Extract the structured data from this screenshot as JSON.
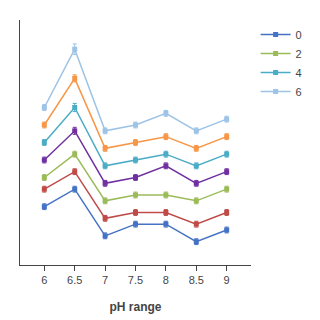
{
  "chart_data": {
    "type": "line",
    "x_label": "pH range",
    "x": [
      6,
      6.5,
      7,
      7.5,
      8,
      8.5,
      9
    ],
    "series": [
      {
        "name": "0",
        "color": "#4472C4",
        "values": [
          0.54,
          0.57,
          0.49,
          0.51,
          0.51,
          0.48,
          0.5
        ],
        "errors": [
          0.005,
          0.005,
          0.005,
          0.005,
          0.005,
          0.005,
          0.005
        ]
      },
      {
        "color": "#BE4B48",
        "values": [
          0.57,
          0.6,
          0.52,
          0.53,
          0.53,
          0.51,
          0.53
        ],
        "errors": [
          0.005,
          0.005,
          0.005,
          0.005,
          0.005,
          0.005,
          0.005
        ]
      },
      {
        "name": "2",
        "color": "#9BBB59",
        "values": [
          0.59,
          0.63,
          0.55,
          0.56,
          0.56,
          0.55,
          0.57
        ],
        "errors": [
          0.005,
          0.005,
          0.005,
          0.005,
          0.005,
          0.005,
          0.005
        ]
      },
      {
        "color": "#7030A0",
        "values": [
          0.62,
          0.67,
          0.58,
          0.59,
          0.61,
          0.58,
          0.6
        ],
        "errors": [
          0.005,
          0.006,
          0.005,
          0.005,
          0.005,
          0.005,
          0.005
        ]
      },
      {
        "name": "4",
        "color": "#4BACC6",
        "values": [
          0.65,
          0.71,
          0.61,
          0.62,
          0.63,
          0.61,
          0.63
        ],
        "errors": [
          0.005,
          0.007,
          0.005,
          0.005,
          0.005,
          0.005,
          0.005
        ]
      },
      {
        "color": "#F79646",
        "values": [
          0.68,
          0.76,
          0.64,
          0.65,
          0.66,
          0.64,
          0.66
        ],
        "errors": [
          0.005,
          0.006,
          0.005,
          0.005,
          0.005,
          0.005,
          0.005
        ]
      },
      {
        "name": "6",
        "color": "#9DC3E6",
        "values": [
          0.71,
          0.81,
          0.67,
          0.68,
          0.7,
          0.67,
          0.69
        ],
        "errors": [
          0.005,
          0.009,
          0.005,
          0.005,
          0.005,
          0.005,
          0.005
        ]
      }
    ],
    "xlim": [
      5.6,
      9.4
    ],
    "xticks": [
      6,
      6.5,
      7,
      7.5,
      8,
      8.5,
      9
    ],
    "ylim": [
      0.44,
      0.86
    ],
    "yticks": [],
    "tick_labels": "x",
    "grid": false,
    "legend": "upper right",
    "marker": "square",
    "line_style": "solid"
  }
}
